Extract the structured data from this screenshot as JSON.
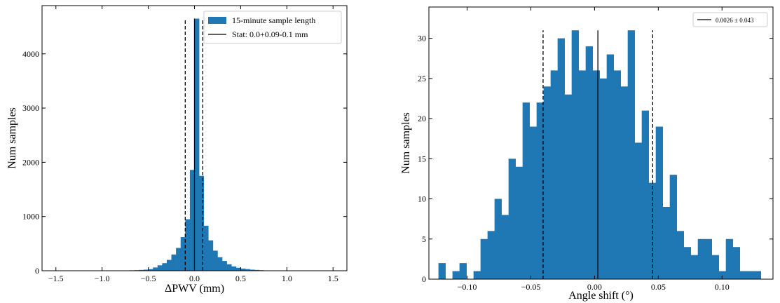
{
  "chart_data": [
    {
      "type": "histogram",
      "xlabel": "ΔPWV (mm)",
      "ylabel": "Num samples",
      "bins": [
        -0.75,
        -0.7,
        -0.65,
        -0.6,
        -0.55,
        -0.5,
        -0.45,
        -0.4,
        -0.35,
        -0.3,
        -0.25,
        -0.2,
        -0.15,
        -0.1,
        -0.05,
        0,
        0.05,
        0.1,
        0.15,
        0.2,
        0.25,
        0.3,
        0.35,
        0.4,
        0.45,
        0.5,
        0.55,
        0.6,
        0.65,
        0.7,
        0.75,
        0.8,
        0.85
      ],
      "series": [
        {
          "name": "15-minute sample length",
          "color": "#1f77b4",
          "values": [
            5,
            8,
            10,
            15,
            20,
            30,
            60,
            100,
            140,
            200,
            300,
            420,
            620,
            950,
            1860,
            4650,
            1750,
            830,
            560,
            370,
            250,
            180,
            120,
            80,
            55,
            40,
            30,
            20,
            15,
            10,
            6,
            4
          ]
        }
      ],
      "vlines": [
        {
          "x": 0.0,
          "style": "solid",
          "color": "#000000",
          "name": "Stat: 0.0+0.09-0.1 mm",
          "top": 4650
        },
        {
          "x": -0.1,
          "style": "dashed",
          "color": "#000000",
          "top": 4650
        },
        {
          "x": 0.09,
          "style": "dashed",
          "color": "#000000",
          "top": 4650
        }
      ],
      "xlim": [
        -1.65,
        1.65
      ],
      "ylim": [
        0,
        4890
      ],
      "xticks": [
        {
          "value": -1.5,
          "label": "−1.5"
        },
        {
          "value": -1.0,
          "label": "−1.0"
        },
        {
          "value": -0.5,
          "label": "−0.5"
        },
        {
          "value": 0,
          "label": "0.0"
        },
        0.5,
        {
          "value": 1.0,
          "label": "1.0"
        },
        1.5
      ],
      "yticks": [
        0,
        1000,
        2000,
        3000,
        4000
      ],
      "legend": "upper right"
    },
    {
      "type": "histogram",
      "xlabel": "Angle shift (°)",
      "ylabel": "Num samples",
      "bins": [
        -0.1225,
        -0.117,
        -0.1115,
        -0.106,
        -0.1005,
        -0.095,
        -0.0895,
        -0.084,
        -0.0785,
        -0.073,
        -0.0675,
        -0.062,
        -0.0565,
        -0.051,
        -0.0455,
        -0.04,
        -0.0345,
        -0.029,
        -0.0235,
        -0.018,
        -0.0125,
        -0.007,
        -0.0015,
        0.004,
        0.0095,
        0.015,
        0.0205,
        0.026,
        0.0315,
        0.037,
        0.0425,
        0.048,
        0.0535,
        0.059,
        0.0645,
        0.07,
        0.0755,
        0.081,
        0.0865,
        0.092,
        0.0975,
        0.103,
        0.1085,
        0.114,
        0.1195,
        0.125,
        0.1305
      ],
      "series": [
        {
          "color": "#1f77b4",
          "values": [
            2,
            0,
            1,
            2,
            0,
            1,
            5,
            6,
            10,
            8,
            15,
            14,
            22,
            19,
            22,
            24,
            26,
            30,
            23,
            31,
            26,
            29,
            26,
            25,
            28,
            26,
            24,
            31,
            17,
            21,
            12,
            19,
            9,
            13,
            6,
            4,
            3,
            5,
            5,
            3,
            1,
            5,
            4,
            1,
            1,
            1
          ]
        }
      ],
      "vlines": [
        {
          "x": 0.0026,
          "style": "solid",
          "color": "#000000",
          "name": "0.0026 ± 0.043",
          "top": 31
        },
        {
          "x": -0.0404,
          "style": "dashed",
          "color": "#000000",
          "top": 31
        },
        {
          "x": 0.0456,
          "style": "dashed",
          "color": "#000000",
          "top": 31
        }
      ],
      "xlim": [
        -0.13,
        0.14
      ],
      "ylim": [
        0,
        33.9
      ],
      "xticks": [
        {
          "value": -0.1,
          "label": "−0.10"
        },
        {
          "value": -0.05,
          "label": "−0.05"
        },
        {
          "value": 0,
          "label": "0.00"
        },
        0.05,
        {
          "value": 0.1,
          "label": "0.10"
        }
      ],
      "yticks": [
        0,
        5,
        10,
        15,
        20,
        25,
        30
      ],
      "legend": "upper right"
    }
  ]
}
